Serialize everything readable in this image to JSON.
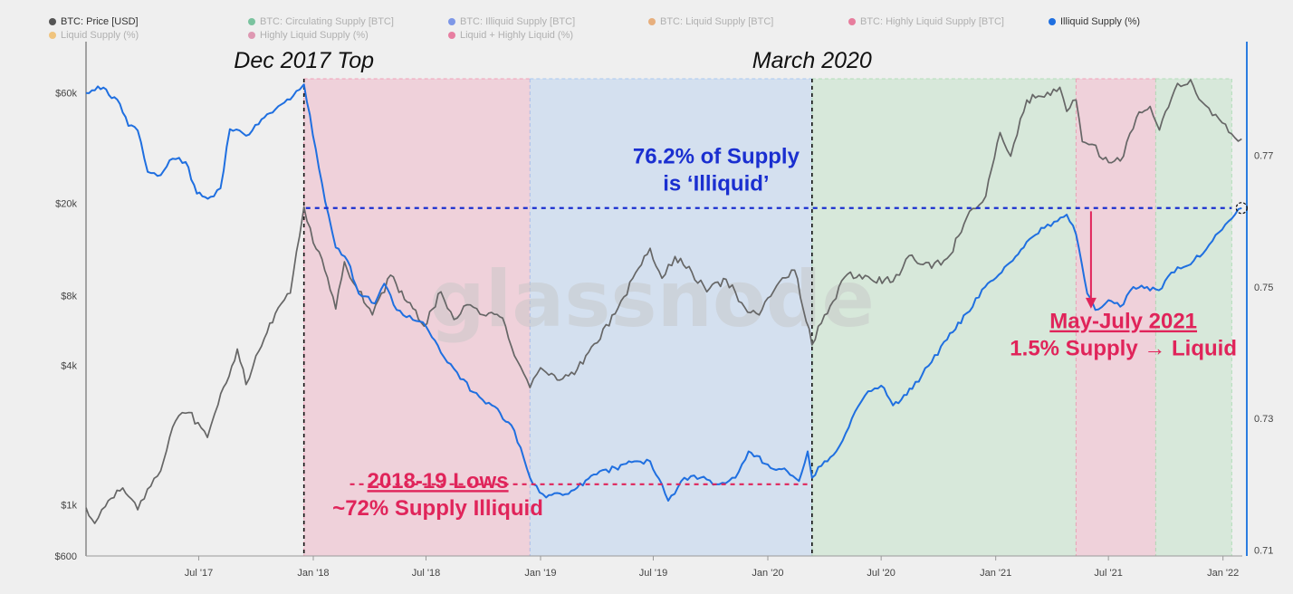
{
  "legend": [
    {
      "label": "BTC: Price [USD]",
      "color": "#555555",
      "active": true
    },
    {
      "label": "BTC: Circulating Supply [BTC]",
      "color": "#1a9e5c",
      "active": false
    },
    {
      "label": "BTC: Illiquid Supply [BTC]",
      "color": "#1f4fe0",
      "active": false
    },
    {
      "label": "BTC: Liquid Supply [BTC]",
      "color": "#e07a1f",
      "active": false
    },
    {
      "label": "BTC: Highly Liquid Supply [BTC]",
      "color": "#e01f5a",
      "active": false
    },
    {
      "label": "Illiquid Supply (%)",
      "color": "#1f6fe0",
      "active": true
    },
    {
      "label": "Liquid Supply (%)",
      "color": "#f0a020",
      "active": false
    },
    {
      "label": "Highly Liquid Supply (%)",
      "color": "#d05080",
      "active": false
    },
    {
      "label": "Liquid + Highly Liquid (%)",
      "color": "#e02060",
      "active": false
    }
  ],
  "watermark": "glassnode",
  "chart_data": {
    "type": "line",
    "x_axis": {
      "type": "date",
      "min": "2017-01-01",
      "max": "2022-02-01",
      "ticks": [
        {
          "date": "2017-07-01",
          "label": "Jul '17"
        },
        {
          "date": "2018-01-01",
          "label": "Jan '18"
        },
        {
          "date": "2018-07-01",
          "label": "Jul '18"
        },
        {
          "date": "2019-01-01",
          "label": "Jan '19"
        },
        {
          "date": "2019-07-01",
          "label": "Jul '19"
        },
        {
          "date": "2020-01-01",
          "label": "Jan '20"
        },
        {
          "date": "2020-07-01",
          "label": "Jul '20"
        },
        {
          "date": "2021-01-01",
          "label": "Jan '21"
        },
        {
          "date": "2021-07-01",
          "label": "Jul '21"
        },
        {
          "date": "2022-01-01",
          "label": "Jan '22"
        }
      ]
    },
    "y_left": {
      "scale": "log",
      "min": 600,
      "max": 100000,
      "ticks": [
        {
          "value": 600,
          "label": "$600"
        },
        {
          "value": 1000,
          "label": "$1k"
        },
        {
          "value": 4000,
          "label": "$4k"
        },
        {
          "value": 8000,
          "label": "$8k"
        },
        {
          "value": 20000,
          "label": "$20k"
        },
        {
          "value": 60000,
          "label": "$60k"
        }
      ]
    },
    "y_right": {
      "scale": "linear",
      "min": 0.7091,
      "max": 0.7873,
      "ticks": [
        {
          "value": 0.71,
          "label": "0.71"
        },
        {
          "value": 0.73,
          "label": "0.73"
        },
        {
          "value": 0.75,
          "label": "0.75"
        },
        {
          "value": 0.77,
          "label": "0.77"
        }
      ]
    },
    "regions": [
      {
        "from": "2017-12-17",
        "to": "2018-12-15",
        "color": "#f0a0b8"
      },
      {
        "from": "2018-12-15",
        "to": "2020-03-12",
        "color": "#a9c8f0"
      },
      {
        "from": "2020-03-12",
        "to": "2021-05-10",
        "color": "#b0dcb8"
      },
      {
        "from": "2021-05-10",
        "to": "2021-09-15",
        "color": "#f0a0b8"
      },
      {
        "from": "2021-09-15",
        "to": "2022-01-15",
        "color": "#b0dcb8"
      }
    ],
    "vlines": [
      {
        "date": "2017-12-17",
        "label": "Dec 2017 Top"
      },
      {
        "date": "2020-03-12",
        "label": "March 2020"
      }
    ],
    "hlines": [
      {
        "axis": "right",
        "value": 0.762,
        "from": "2017-12-20",
        "to": "2022-01-15",
        "color": "#1a2fd0"
      },
      {
        "axis": "right",
        "value": 0.72,
        "from": "2018-03-01",
        "to": "2020-03-12",
        "color": "#e0245a"
      }
    ],
    "annotations": [
      {
        "id": "illiquid",
        "lines": [
          "76.2% of Supply",
          "is ‘Illiquid’"
        ],
        "color": "#1a2fd0",
        "date": "2019-10-10",
        "value": 0.7688,
        "axis": "right",
        "underline": false
      },
      {
        "id": "lows",
        "lines": [
          "2018-19 Lows",
          "~72% Supply Illiquid"
        ],
        "color": "#e0245a",
        "date": "2018-07-20",
        "value": 0.7194,
        "axis": "right",
        "underline": true
      },
      {
        "id": "mayjuly",
        "lines": [
          "May-July 2021",
          "1.5% Supply → Liquid"
        ],
        "color": "#e0245a",
        "date": "2021-07-25",
        "value": 0.7437,
        "axis": "right",
        "underline": true
      }
    ],
    "arrow": {
      "date": "2021-06-03",
      "from": 0.7615,
      "to": 0.7467,
      "color": "#e0245a"
    },
    "series": [
      {
        "name": "BTC: Price [USD]",
        "axis": "left",
        "color": "#666666",
        "points": [
          [
            "2017-01-01",
            970
          ],
          [
            "2017-01-15",
            830
          ],
          [
            "2017-02-01",
            980
          ],
          [
            "2017-03-01",
            1180
          ],
          [
            "2017-03-25",
            950
          ],
          [
            "2017-04-15",
            1200
          ],
          [
            "2017-05-01",
            1400
          ],
          [
            "2017-05-25",
            2300
          ],
          [
            "2017-06-15",
            2500
          ],
          [
            "2017-07-15",
            1950
          ],
          [
            "2017-08-01",
            2700
          ],
          [
            "2017-09-01",
            4700
          ],
          [
            "2017-09-15",
            3300
          ],
          [
            "2017-10-01",
            4400
          ],
          [
            "2017-11-01",
            6700
          ],
          [
            "2017-11-25",
            8200
          ],
          [
            "2017-12-10",
            14500
          ],
          [
            "2017-12-17",
            19300
          ],
          [
            "2018-01-01",
            13500
          ],
          [
            "2018-01-15",
            11500
          ],
          [
            "2018-02-06",
            7000
          ],
          [
            "2018-02-20",
            11200
          ],
          [
            "2018-03-10",
            8800
          ],
          [
            "2018-04-06",
            6600
          ],
          [
            "2018-05-05",
            9800
          ],
          [
            "2018-06-01",
            7500
          ],
          [
            "2018-06-28",
            5900
          ],
          [
            "2018-07-25",
            8300
          ],
          [
            "2018-08-15",
            6300
          ],
          [
            "2018-09-05",
            7300
          ],
          [
            "2018-10-01",
            6600
          ],
          [
            "2018-11-01",
            6400
          ],
          [
            "2018-11-20",
            4400
          ],
          [
            "2018-12-15",
            3200
          ],
          [
            "2019-01-01",
            3900
          ],
          [
            "2019-02-01",
            3450
          ],
          [
            "2019-03-01",
            3850
          ],
          [
            "2019-04-02",
            5000
          ],
          [
            "2019-05-15",
            7900
          ],
          [
            "2019-06-26",
            12800
          ],
          [
            "2019-07-15",
            9500
          ],
          [
            "2019-08-05",
            11800
          ],
          [
            "2019-09-01",
            10100
          ],
          [
            "2019-09-25",
            8300
          ],
          [
            "2019-10-26",
            9400
          ],
          [
            "2019-11-25",
            7100
          ],
          [
            "2019-12-18",
            6600
          ],
          [
            "2020-01-15",
            8800
          ],
          [
            "2020-02-13",
            10300
          ],
          [
            "2020-03-12",
            4900
          ],
          [
            "2020-04-01",
            6600
          ],
          [
            "2020-05-08",
            9900
          ],
          [
            "2020-06-15",
            9400
          ],
          [
            "2020-07-20",
            9200
          ],
          [
            "2020-08-15",
            11900
          ],
          [
            "2020-09-20",
            10500
          ],
          [
            "2020-10-20",
            12000
          ],
          [
            "2020-11-20",
            18500
          ],
          [
            "2020-12-16",
            21500
          ],
          [
            "2021-01-08",
            40500
          ],
          [
            "2021-01-25",
            32000
          ],
          [
            "2021-02-20",
            56000
          ],
          [
            "2021-03-15",
            58000
          ],
          [
            "2021-04-14",
            63500
          ],
          [
            "2021-04-25",
            50000
          ],
          [
            "2021-05-10",
            56000
          ],
          [
            "2021-05-20",
            37000
          ],
          [
            "2021-06-05",
            36000
          ],
          [
            "2021-06-22",
            31000
          ],
          [
            "2021-07-20",
            30500
          ],
          [
            "2021-08-15",
            47000
          ],
          [
            "2021-09-06",
            52500
          ],
          [
            "2021-09-21",
            41500
          ],
          [
            "2021-10-20",
            66000
          ],
          [
            "2021-11-10",
            68500
          ],
          [
            "2021-11-28",
            55000
          ],
          [
            "2021-12-15",
            48000
          ],
          [
            "2022-01-05",
            44000
          ],
          [
            "2022-01-20",
            38500
          ],
          [
            "2022-01-31",
            38000
          ]
        ]
      },
      {
        "name": "Illiquid Supply (%)",
        "axis": "right",
        "color": "#1f6fe0",
        "points": [
          [
            "2017-01-01",
            0.7795
          ],
          [
            "2017-01-20",
            0.7805
          ],
          [
            "2017-02-20",
            0.7785
          ],
          [
            "2017-03-10",
            0.7745
          ],
          [
            "2017-03-25",
            0.7738
          ],
          [
            "2017-04-10",
            0.7675
          ],
          [
            "2017-05-01",
            0.767
          ],
          [
            "2017-05-20",
            0.7695
          ],
          [
            "2017-06-10",
            0.769
          ],
          [
            "2017-06-28",
            0.7642
          ],
          [
            "2017-07-20",
            0.7637
          ],
          [
            "2017-08-05",
            0.765
          ],
          [
            "2017-08-20",
            0.774
          ],
          [
            "2017-09-15",
            0.773
          ],
          [
            "2017-10-10",
            0.7755
          ],
          [
            "2017-11-01",
            0.777
          ],
          [
            "2017-11-25",
            0.7785
          ],
          [
            "2017-12-10",
            0.78
          ],
          [
            "2017-12-17",
            0.7808
          ],
          [
            "2018-01-05",
            0.771
          ],
          [
            "2018-01-20",
            0.763
          ],
          [
            "2018-02-06",
            0.756
          ],
          [
            "2018-02-25",
            0.754
          ],
          [
            "2018-03-15",
            0.749
          ],
          [
            "2018-04-10",
            0.7475
          ],
          [
            "2018-04-25",
            0.7505
          ],
          [
            "2018-05-15",
            0.7465
          ],
          [
            "2018-06-10",
            0.745
          ],
          [
            "2018-07-01",
            0.744
          ],
          [
            "2018-07-25",
            0.74
          ],
          [
            "2018-08-20",
            0.737
          ],
          [
            "2018-09-15",
            0.734
          ],
          [
            "2018-10-15",
            0.732
          ],
          [
            "2018-11-15",
            0.729
          ],
          [
            "2018-12-05",
            0.724
          ],
          [
            "2018-12-20",
            0.72
          ],
          [
            "2019-01-10",
            0.718
          ],
          [
            "2019-02-10",
            0.7185
          ],
          [
            "2019-03-01",
            0.7195
          ],
          [
            "2019-04-01",
            0.7215
          ],
          [
            "2019-05-01",
            0.7225
          ],
          [
            "2019-06-05",
            0.7235
          ],
          [
            "2019-06-26",
            0.7235
          ],
          [
            "2019-07-15",
            0.72
          ],
          [
            "2019-07-25",
            0.7175
          ],
          [
            "2019-08-20",
            0.721
          ],
          [
            "2019-09-15",
            0.721
          ],
          [
            "2019-10-15",
            0.72
          ],
          [
            "2019-11-10",
            0.721
          ],
          [
            "2019-12-01",
            0.725
          ],
          [
            "2020-01-01",
            0.723
          ],
          [
            "2020-02-01",
            0.722
          ],
          [
            "2020-02-20",
            0.7205
          ],
          [
            "2020-03-05",
            0.725
          ],
          [
            "2020-03-12",
            0.721
          ],
          [
            "2020-04-01",
            0.7235
          ],
          [
            "2020-04-20",
            0.725
          ],
          [
            "2020-05-15",
            0.73
          ],
          [
            "2020-06-05",
            0.7335
          ],
          [
            "2020-07-01",
            0.735
          ],
          [
            "2020-07-20",
            0.732
          ],
          [
            "2020-08-20",
            0.7345
          ],
          [
            "2020-09-15",
            0.738
          ],
          [
            "2020-10-15",
            0.742
          ],
          [
            "2020-11-15",
            0.746
          ],
          [
            "2020-12-15",
            0.75
          ],
          [
            "2021-01-15",
            0.753
          ],
          [
            "2021-02-15",
            0.756
          ],
          [
            "2021-03-15",
            0.759
          ],
          [
            "2021-04-10",
            0.76
          ],
          [
            "2021-04-25",
            0.761
          ],
          [
            "2021-05-10",
            0.758
          ],
          [
            "2021-05-28",
            0.749
          ],
          [
            "2021-06-10",
            0.7465
          ],
          [
            "2021-07-01",
            0.748
          ],
          [
            "2021-07-20",
            0.747
          ],
          [
            "2021-08-10",
            0.75
          ],
          [
            "2021-09-01",
            0.75
          ],
          [
            "2021-09-20",
            0.7495
          ],
          [
            "2021-10-20",
            0.753
          ],
          [
            "2021-11-15",
            0.754
          ],
          [
            "2021-12-15",
            0.757
          ],
          [
            "2022-01-10",
            0.76
          ],
          [
            "2022-01-31",
            0.762
          ]
        ]
      }
    ]
  }
}
